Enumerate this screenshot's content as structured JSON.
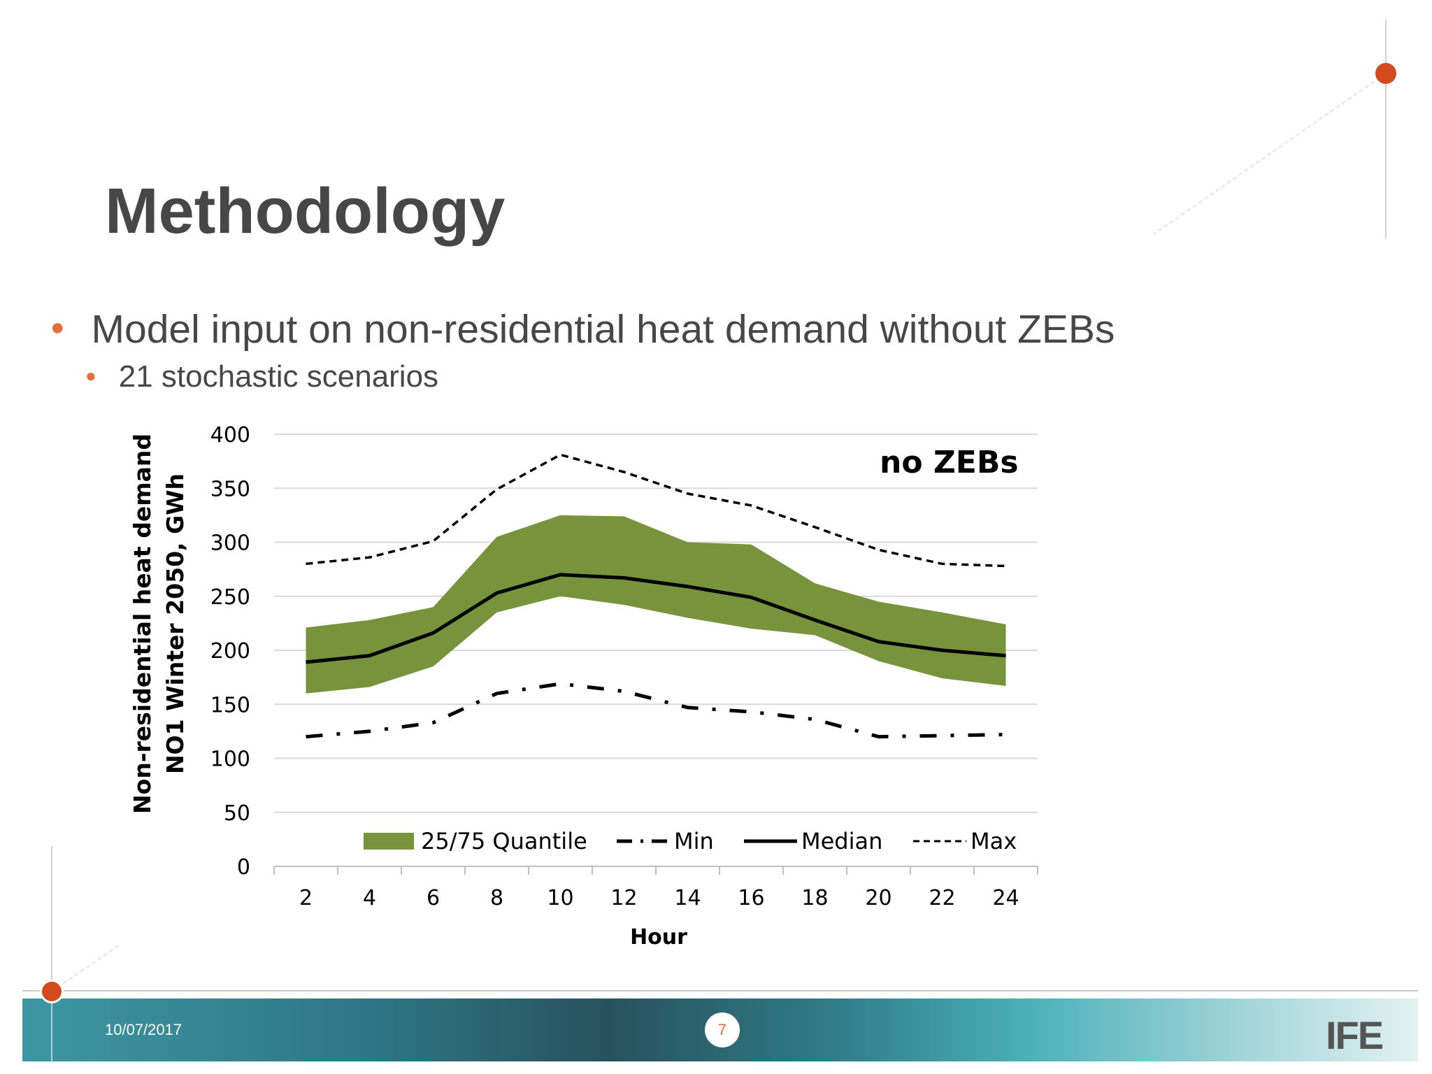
{
  "slide": {
    "title": "Methodology",
    "bullet_1": "Model input on non-residential heat demand without ZEBs",
    "bullet_2": "21 stochastic scenarios"
  },
  "footer": {
    "date": "10/07/2017",
    "page_number": "7",
    "logo_text": "IFE"
  },
  "colors": {
    "accent": "#e07040",
    "band": "#77933c",
    "text": "#474747",
    "grid": "#d9d9d9"
  },
  "chart_data": {
    "type": "line",
    "annotation": "no ZEBs",
    "xlabel": "Hour",
    "ylabel_line1": "Non-residential heat demand",
    "ylabel_line2": "NO1 Winter 2050, GWh",
    "ylim": [
      0,
      400
    ],
    "yticks": [
      0,
      50,
      100,
      150,
      200,
      250,
      300,
      350,
      400
    ],
    "x": [
      2,
      4,
      6,
      8,
      10,
      12,
      14,
      16,
      18,
      20,
      22,
      24
    ],
    "grid": "horizontal",
    "legend_position": "bottom-inside",
    "series": [
      {
        "name": "25/75 Quantile",
        "style": "band",
        "lower": [
          160,
          166,
          185,
          235,
          250,
          242,
          230,
          220,
          214,
          190,
          174,
          167
        ],
        "upper": [
          221,
          228,
          240,
          305,
          325,
          324,
          300,
          298,
          262,
          245,
          235,
          224
        ]
      },
      {
        "name": "Min",
        "style": "dash-dot",
        "values": [
          120,
          125,
          133,
          160,
          169,
          162,
          147,
          143,
          136,
          120,
          121,
          122
        ]
      },
      {
        "name": "Median",
        "style": "solid",
        "values": [
          189,
          195,
          216,
          253,
          270,
          267,
          259,
          249,
          228,
          208,
          200,
          195
        ]
      },
      {
        "name": "Max",
        "style": "dashed",
        "values": [
          280,
          286,
          301,
          349,
          381,
          365,
          345,
          334,
          314,
          293,
          280,
          278
        ]
      }
    ]
  }
}
